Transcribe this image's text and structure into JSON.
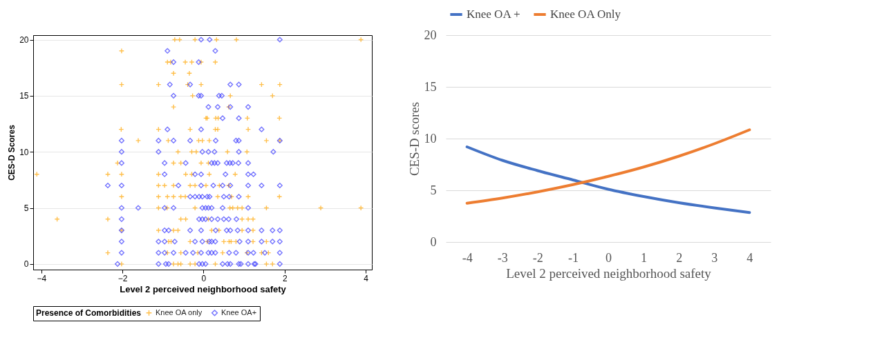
{
  "chart_data": [
    {
      "type": "scatter",
      "xlabel": "Level 2 perceived neighborhood safety",
      "ylabel": "CES-D Scores",
      "legend_title": "Presence of Comorbidities",
      "xlim": [
        -4.2,
        4.15
      ],
      "ylim": [
        -0.5,
        20.4
      ],
      "xticks": [
        -4,
        -2,
        0,
        2,
        4
      ],
      "yticks": [
        0,
        5,
        10,
        15,
        20
      ],
      "grid": "y",
      "legend": "bottom",
      "series": [
        {
          "name": "Knee OA only",
          "color": "#ffa500",
          "marker": "cross",
          "x": [
            -0.71,
            -0.59,
            -0.21,
            0.32,
            0.81,
            3.88,
            -2.02,
            -0.89,
            -0.81,
            -0.45,
            -0.29,
            -0.06,
            0.29,
            -0.74,
            -0.35,
            -2.02,
            -1.11,
            -0.39,
            -0.06,
            1.43,
            1.88,
            -0.27,
            0.66,
            1.7,
            -0.74,
            0.62,
            0.06,
            0.09,
            0.3,
            0.36,
            1.08,
            1.87,
            -2.03,
            -1.11,
            -0.33,
            0.29,
            0.35,
            1.1,
            -1.61,
            -0.87,
            -0.12,
            -0.03,
            0.14,
            1.55,
            1.88,
            -0.63,
            -0.29,
            -0.18,
            0.59,
            1.07,
            -2.12,
            -0.74,
            -0.56,
            -0.06,
            0.12,
            -4.11,
            -2.36,
            -2.02,
            -1.11,
            -0.44,
            -0.29,
            0.14,
            0.78,
            -1.11,
            -0.96,
            -0.74,
            -0.33,
            -0.21,
            0.06,
            0.39,
            0.62,
            -2.02,
            -1.11,
            -0.89,
            -0.74,
            -0.56,
            -0.45,
            0.35,
            0.69,
            1.1,
            1.87,
            -1.11,
            -0.9,
            -0.21,
            0.65,
            0.72,
            0.84,
            0.95,
            1.55,
            2.89,
            3.88,
            -3.61,
            -2.36,
            -0.56,
            -0.44,
            0.12,
            0.95,
            1.1,
            1.22,
            -2.02,
            -1.11,
            -0.74,
            -0.63,
            0.2,
            0.38,
            0.95,
            1.22,
            -0.86,
            -0.8,
            -0.33,
            0.09,
            0.5,
            0.63,
            0.68,
            0.8,
            1.22,
            1.55,
            -2.36,
            -0.89,
            -0.56,
            -0.14,
            0.47,
            1.07,
            1.43,
            1.6,
            -2.02,
            -0.74,
            -0.63,
            -0.56,
            -0.33,
            -0.21,
            0.29,
            1.55,
            1.7
          ],
          "values": [
            20,
            20,
            20,
            20,
            20,
            20,
            19,
            18,
            18,
            18,
            18,
            18,
            18,
            17,
            17,
            16,
            16,
            16,
            16,
            16,
            16,
            15,
            15,
            15,
            14,
            14,
            13,
            13,
            13,
            13,
            13,
            13,
            12,
            12,
            12,
            12,
            12,
            12,
            11,
            11,
            11,
            11,
            11,
            11,
            11,
            10,
            10,
            10,
            10,
            10,
            9,
            9,
            9,
            9,
            9,
            8,
            8,
            8,
            8,
            8,
            8,
            8,
            8,
            7,
            7,
            7,
            7,
            7,
            7,
            7,
            7,
            6,
            6,
            6,
            6,
            6,
            6,
            6,
            6,
            6,
            6,
            5,
            5,
            5,
            5,
            5,
            5,
            5,
            5,
            5,
            5,
            4,
            4,
            4,
            4,
            4,
            4,
            4,
            4,
            3,
            3,
            3,
            3,
            3,
            3,
            3,
            3,
            2,
            2,
            2,
            2,
            2,
            2,
            2,
            2,
            2,
            2,
            1,
            1,
            1,
            1,
            1,
            1,
            1,
            1,
            0,
            0,
            0,
            0,
            0,
            0,
            0,
            0,
            0
          ]
        },
        {
          "name": "Knee OA+",
          "color": "#3a3aff",
          "marker": "diamond",
          "x": [
            -0.06,
            0.15,
            1.88,
            -0.89,
            0.29,
            -0.74,
            -0.12,
            -0.83,
            -0.33,
            0.66,
            0.87,
            -0.74,
            -0.12,
            -0.06,
            0.38,
            0.45,
            0.12,
            0.35,
            0.66,
            1.1,
            0.47,
            0.87,
            -0.89,
            -0.06,
            1.43,
            -2.02,
            -1.11,
            -0.74,
            -0.33,
            0.3,
            0.8,
            0.87,
            1.88,
            -2.02,
            -1.11,
            -0.03,
            0.12,
            0.27,
            0.87,
            1.72,
            -2.02,
            -0.96,
            -0.44,
            0.2,
            0.27,
            0.35,
            0.57,
            0.65,
            0.72,
            0.86,
            1.1,
            -0.96,
            -0.21,
            -0.06,
            0.54,
            1.1,
            1.23,
            -2.36,
            -2.02,
            -0.62,
            -0.06,
            0.24,
            0.47,
            0.66,
            1.1,
            1.43,
            1.88,
            -0.33,
            -0.21,
            -0.11,
            -0.03,
            0.09,
            0.15,
            0.5,
            0.63,
            0.87,
            -2.02,
            -1.61,
            -0.96,
            -0.74,
            -0.03,
            0.05,
            0.12,
            0.2,
            0.47,
            1.1,
            -2.02,
            -0.11,
            -0.03,
            0.05,
            0.2,
            0.35,
            0.5,
            0.62,
            0.81,
            -2.02,
            -0.96,
            -0.86,
            -0.33,
            -0.06,
            0.3,
            0.57,
            0.66,
            0.84,
            1.1,
            1.43,
            1.7,
            1.88,
            -2.02,
            -1.11,
            -0.96,
            -0.71,
            -0.21,
            -0.03,
            0.14,
            0.2,
            0.29,
            0.89,
            1.1,
            1.43,
            1.7,
            1.88,
            -2.02,
            -1.11,
            -0.96,
            -0.74,
            -0.44,
            -0.26,
            -0.06,
            0.12,
            0.2,
            0.29,
            0.63,
            0.8,
            1.1,
            1.23,
            1.51,
            1.88,
            -2.12,
            -1.11,
            -0.93,
            -0.86,
            -0.11,
            -0.03,
            0.05,
            0.47,
            0.59,
            0.66,
            0.87,
            0.92,
            1.1,
            1.25,
            1.28,
            1.88
          ],
          "values": [
            20,
            20,
            20,
            19,
            19,
            18,
            18,
            16,
            16,
            16,
            16,
            15,
            15,
            15,
            15,
            15,
            14,
            14,
            14,
            14,
            13,
            13,
            12,
            12,
            12,
            11,
            11,
            11,
            11,
            11,
            11,
            11,
            11,
            10,
            10,
            10,
            10,
            10,
            10,
            10,
            9,
            9,
            9,
            9,
            9,
            9,
            9,
            9,
            9,
            9,
            9,
            8,
            8,
            8,
            8,
            8,
            8,
            7,
            7,
            7,
            7,
            7,
            7,
            7,
            7,
            7,
            7,
            6,
            6,
            6,
            6,
            6,
            6,
            6,
            6,
            6,
            5,
            5,
            5,
            5,
            5,
            5,
            5,
            5,
            5,
            5,
            4,
            4,
            4,
            4,
            4,
            4,
            4,
            4,
            4,
            3,
            3,
            3,
            3,
            3,
            3,
            3,
            3,
            3,
            3,
            3,
            3,
            3,
            2,
            2,
            2,
            2,
            2,
            2,
            2,
            2,
            2,
            2,
            2,
            2,
            2,
            2,
            1,
            1,
            1,
            1,
            1,
            1,
            1,
            1,
            1,
            1,
            1,
            1,
            1,
            1,
            1,
            1,
            0,
            0,
            0,
            0,
            0,
            0,
            0,
            0,
            0,
            0,
            0,
            0,
            0,
            0,
            0,
            0
          ]
        }
      ]
    },
    {
      "type": "line",
      "xlabel": "Level 2 perceived neighborhood safety",
      "ylabel": "CES-D scores",
      "categories": [
        "-4",
        "-3",
        "-2",
        "-1",
        "0",
        "1",
        "2",
        "3",
        "4"
      ],
      "ylim": [
        0,
        20
      ],
      "yticks": [
        0,
        5,
        10,
        15,
        20
      ],
      "grid": "y",
      "legend": "top",
      "series": [
        {
          "name": "Knee OA +",
          "color": "#4472c4",
          "values": [
            9.2,
            7.9,
            6.9,
            6.0,
            5.1,
            4.4,
            3.8,
            3.3,
            2.85
          ]
        },
        {
          "name": "Knee OA Only",
          "color": "#ed7d31",
          "values": [
            3.75,
            4.25,
            4.85,
            5.55,
            6.35,
            7.25,
            8.3,
            9.5,
            10.85
          ]
        }
      ]
    }
  ]
}
